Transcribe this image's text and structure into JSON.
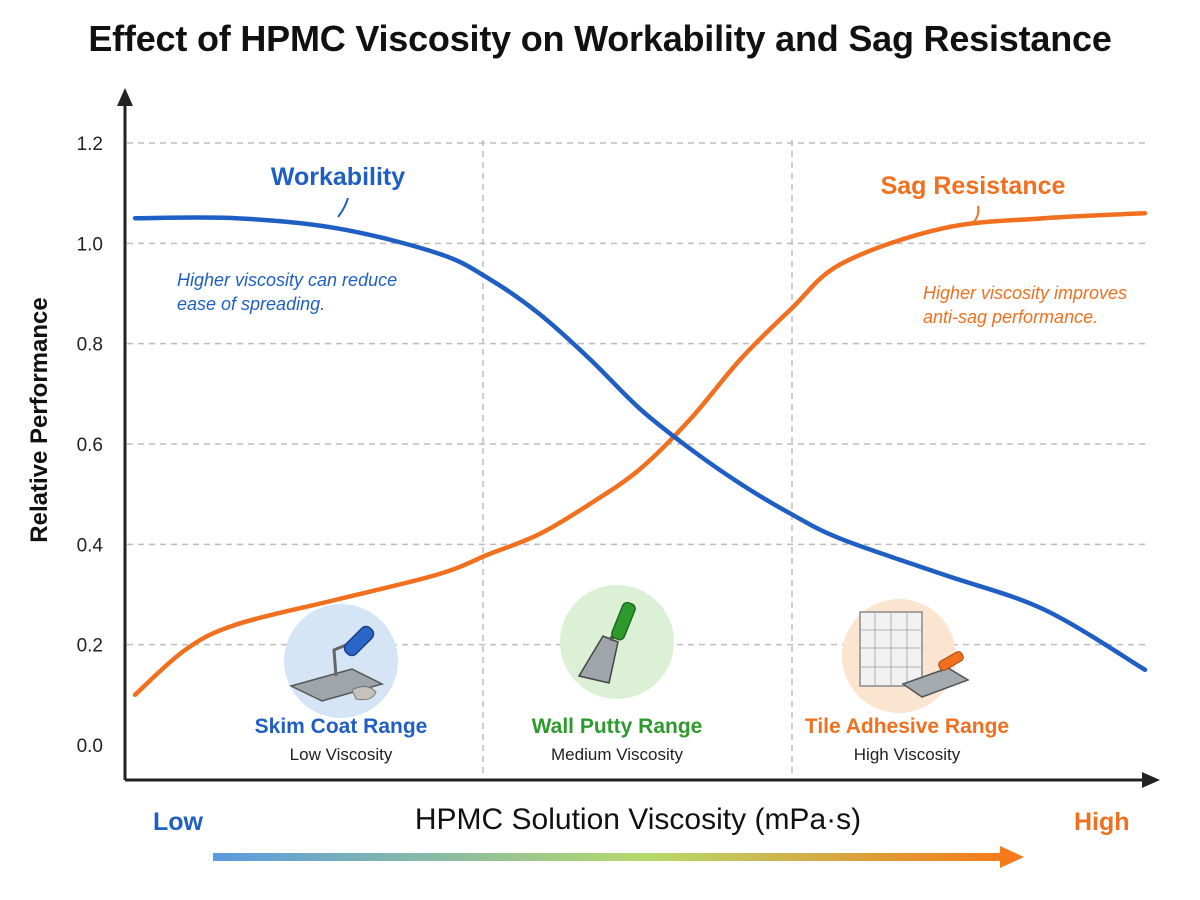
{
  "colors": {
    "workability": "#1f5fc4",
    "sag_resistance": "#f07020",
    "wall_putty": "#2e9a2e",
    "axis": "#222222",
    "grid": "#bdbdbd"
  },
  "icons": {
    "skim_coat": "trowel-icon",
    "wall_putty": "putty-knife-icon",
    "tile_adhesive": "tile-notched-trowel-icon"
  },
  "chart_data": {
    "type": "line",
    "title": "Effect of HPMC Viscosity on Workability and Sag Resistance",
    "xlabel": "HPMC Solution Viscosity (mPa·s)",
    "ylabel": "Relative Performance",
    "x_axis_low_label": "Low",
    "x_axis_high_label": "High",
    "x_axis_ticks": "none (qualitative scale from Low to High)",
    "ylim": [
      0,
      1.2
    ],
    "yticks": [
      "0.0",
      "0.2",
      "0.4",
      "0.6",
      "0.8",
      "1.0",
      "1.2"
    ],
    "grid": true,
    "x_scale": "relative position 0 (Low) to 1 (High)",
    "series": [
      {
        "name": "Workability",
        "x": [
          0,
          0.1,
          0.2,
          0.3,
          0.35,
          0.4,
          0.45,
          0.5,
          0.55,
          0.6,
          0.65,
          0.7,
          0.8,
          0.9,
          1.0
        ],
        "y": [
          1.05,
          1.05,
          1.03,
          0.98,
          0.93,
          0.86,
          0.77,
          0.67,
          0.59,
          0.52,
          0.46,
          0.41,
          0.34,
          0.27,
          0.15
        ],
        "callout": "Higher viscosity can reduce ease of spreading."
      },
      {
        "name": "Sag Resistance",
        "x": [
          0,
          0.05,
          0.1,
          0.2,
          0.3,
          0.35,
          0.4,
          0.45,
          0.5,
          0.55,
          0.6,
          0.65,
          0.7,
          0.8,
          0.9,
          1.0
        ],
        "y": [
          0.1,
          0.19,
          0.24,
          0.29,
          0.34,
          0.38,
          0.42,
          0.48,
          0.55,
          0.65,
          0.77,
          0.87,
          0.96,
          1.03,
          1.05,
          1.06
        ],
        "callout": "Higher viscosity improves anti-sag performance."
      }
    ],
    "ranges": [
      {
        "label": "Skim Coat Range",
        "sublabel": "Low Viscosity"
      },
      {
        "label": "Wall Putty Range",
        "sublabel": "Medium Viscosity"
      },
      {
        "label": "Tile Adhesive Range",
        "sublabel": "High Viscosity"
      }
    ]
  }
}
